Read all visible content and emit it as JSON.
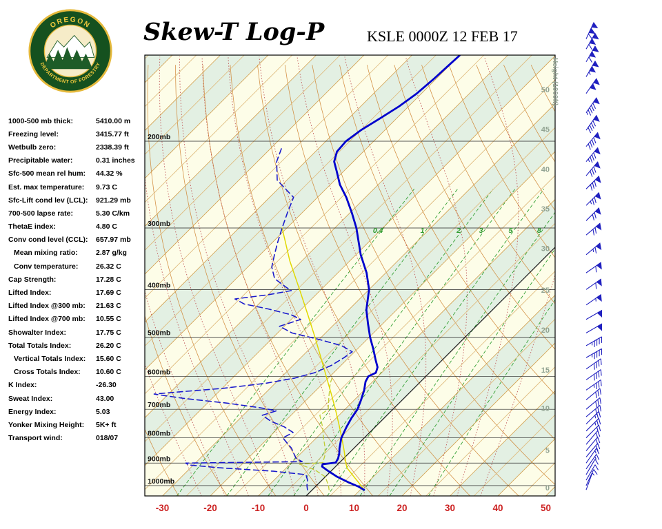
{
  "header": {
    "title": "Skew-T Log-P",
    "station": "KSLE 0000Z 12 FEB 17",
    "logo_top": "OREGON",
    "logo_bottom": "DEPARTMENT OF FORESTRY"
  },
  "indices": [
    {
      "label": "1000-500 mb thick:",
      "value": "5410.00 m",
      "indent": false
    },
    {
      "label": "Freezing level:",
      "value": "3415.77 ft",
      "indent": false
    },
    {
      "label": "Wetbulb zero:",
      "value": "2338.39 ft",
      "indent": false
    },
    {
      "label": "Precipitable water:",
      "value": "0.31 inches",
      "indent": false
    },
    {
      "label": "Sfc-500 mean rel hum:",
      "value": "44.32 %",
      "indent": false
    },
    {
      "label": "Est. max temperature:",
      "value": "9.73 C",
      "indent": false
    },
    {
      "label": "Sfc-Lift cond lev (LCL):",
      "value": "921.29 mb",
      "indent": false
    },
    {
      "label": "700-500 lapse rate:",
      "value": "5.30 C/km",
      "indent": false
    },
    {
      "label": "ThetaE index:",
      "value": "4.80 C",
      "indent": false
    },
    {
      "label": "Conv cond level (CCL):",
      "value": "657.97 mb",
      "indent": false
    },
    {
      "label": "Mean mixing ratio:",
      "value": "2.87 g/kg",
      "indent": true
    },
    {
      "label": "Conv temperature:",
      "value": "26.32 C",
      "indent": true
    },
    {
      "label": "Cap Strength:",
      "value": "17.28 C",
      "indent": false
    },
    {
      "label": "Lifted Index:",
      "value": "17.69 C",
      "indent": false
    },
    {
      "label": "Lifted Index @300 mb:",
      "value": "21.63 C",
      "indent": false
    },
    {
      "label": "Lifted Index @700 mb:",
      "value": "10.55 C",
      "indent": false
    },
    {
      "label": "Showalter Index:",
      "value": "17.75 C",
      "indent": false
    },
    {
      "label": "Total Totals Index:",
      "value": "26.20 C",
      "indent": false
    },
    {
      "label": "Vertical Totals Index:",
      "value": "15.60 C",
      "indent": true
    },
    {
      "label": "Cross Totals Index:",
      "value": "10.60 C",
      "indent": true
    },
    {
      "label": "K Index:",
      "value": "-26.30",
      "indent": false
    },
    {
      "label": "Sweat Index:",
      "value": "43.00",
      "indent": false
    },
    {
      "label": "Energy Index:",
      "value": "5.03",
      "indent": false
    },
    {
      "label": "Yonker Mixing Height:",
      "value": "5K+ ft",
      "indent": false
    },
    {
      "label": "Transport wind:",
      "value": "018/07",
      "indent": false
    }
  ],
  "colors": {
    "temp_profile": "#0000CC",
    "dewpoint": "#1A1ACC",
    "parcel": "#E0D800",
    "wetbulb": "#BFCC33",
    "isotherm": "#D2A050",
    "isotherm_minor": "#DEB97A",
    "zero_isotherm": "#222222",
    "dry_adiabat": "#D08838",
    "moist_adiabat": "#C05858",
    "mixing_ratio": "#33A033",
    "band_green": "#E3F0E3",
    "band_cream": "#FDFDE8",
    "pressure_line": "#222222",
    "temp_label": "#CC2222",
    "height_label": "#92A392",
    "wind_barb": "#2020C0",
    "frame": "#000000"
  },
  "chart_data": {
    "type": "line",
    "title": "Skew-T Log-P",
    "station": "KSLE 0000Z 12 FEB 17",
    "x_axis": {
      "unit": "C",
      "ticks": [
        {
          "t": -30,
          "label": "-30"
        },
        {
          "t": -20,
          "label": "-20"
        },
        {
          "t": -10,
          "label": "-10"
        },
        {
          "t": 0,
          "label": "0"
        },
        {
          "t": 10,
          "label": "10"
        },
        {
          "t": 20,
          "label": "20"
        },
        {
          "t": 30,
          "label": "30"
        },
        {
          "t": 40,
          "label": "40"
        },
        {
          "t": 50,
          "label": "50"
        }
      ]
    },
    "pressure_levels": [
      {
        "p": 200,
        "label": "200mb"
      },
      {
        "p": 300,
        "label": "300mb"
      },
      {
        "p": 400,
        "label": "400mb"
      },
      {
        "p": 500,
        "label": "500mb"
      },
      {
        "p": 600,
        "label": "600mb"
      },
      {
        "p": 700,
        "label": "700mb"
      },
      {
        "p": 800,
        "label": "800mb"
      },
      {
        "p": 900,
        "label": "900mb"
      },
      {
        "p": 1000,
        "label": "1000mb"
      }
    ],
    "height_axis_label": "Height (1000ft)",
    "height_levels": [
      {
        "kft": 0,
        "label": "0",
        "p": 1010
      },
      {
        "kft": 5,
        "label": "5",
        "p": 847
      },
      {
        "kft": 10,
        "label": "10",
        "p": 696
      },
      {
        "kft": 15,
        "label": "15",
        "p": 582
      },
      {
        "kft": 20,
        "label": "20",
        "p": 483
      },
      {
        "kft": 25,
        "label": "25",
        "p": 401
      },
      {
        "kft": 30,
        "label": "30",
        "p": 330
      },
      {
        "kft": 35,
        "label": "35",
        "p": 274
      },
      {
        "kft": 40,
        "label": "40",
        "p": 228
      },
      {
        "kft": 45,
        "label": "45",
        "p": 189
      },
      {
        "kft": 50,
        "label": "50",
        "p": 157
      }
    ],
    "mixing_ratio_lines": [
      0.4,
      1,
      2,
      3,
      5,
      8,
      12,
      20
    ],
    "mixing_ratio_labels": [
      {
        "w": 0.4,
        "label": "0.4"
      },
      {
        "w": 1,
        "label": "1"
      },
      {
        "w": 2,
        "label": "2"
      },
      {
        "w": 3,
        "label": "3"
      },
      {
        "w": 5,
        "label": "5"
      },
      {
        "w": 8,
        "label": "8"
      }
    ],
    "isotherm_range": {
      "min": -150,
      "max": 65,
      "step": 5
    },
    "dry_adiabats": {
      "min": -40,
      "max": 220,
      "step": 10
    },
    "moist_adiabats": {
      "min": -25,
      "max": 35,
      "step": 5
    },
    "series": [
      {
        "name": "wetbulb",
        "color": "#BFCC33",
        "style": "dashed",
        "dash": "6 4",
        "width": 1.3,
        "points": [
          [
            1020,
            3.5
          ],
          [
            1000,
            2.5
          ],
          [
            960,
            0
          ],
          [
            930,
            -3.5
          ],
          [
            905,
            -8
          ],
          [
            898,
            -3.5
          ],
          [
            870,
            -4.5
          ],
          [
            840,
            -6
          ],
          [
            800,
            -8.5
          ],
          [
            760,
            -11
          ],
          [
            720,
            -14
          ],
          [
            700,
            -13.5
          ],
          [
            660,
            -16
          ],
          [
            620,
            -18.5
          ],
          [
            600,
            -19.5
          ]
        ]
      },
      {
        "name": "parcel",
        "color": "#E0D800",
        "style": "solid",
        "width": 1.5,
        "points": [
          [
            1020,
            10.8
          ],
          [
            1000,
            9.3
          ],
          [
            960,
            6
          ],
          [
            921,
            2.7
          ],
          [
            900,
            1.4
          ],
          [
            850,
            -1.5
          ],
          [
            800,
            -4.7
          ],
          [
            750,
            -8.2
          ],
          [
            700,
            -12
          ],
          [
            650,
            -16.2
          ],
          [
            600,
            -20.8
          ],
          [
            550,
            -25.8
          ],
          [
            500,
            -31.3
          ],
          [
            450,
            -37.5
          ],
          [
            400,
            -44.5
          ],
          [
            350,
            -52.5
          ],
          [
            300,
            -61
          ]
        ]
      },
      {
        "name": "dewpoint",
        "color": "#1A1ACC",
        "style": "dashed",
        "dash": "8 5",
        "width": 1.6,
        "points": [
          [
            1020,
            -1
          ],
          [
            1000,
            -2
          ],
          [
            975,
            -3
          ],
          [
            950,
            -4.5
          ],
          [
            935,
            -12
          ],
          [
            920,
            -24
          ],
          [
            908,
            -31
          ],
          [
            900,
            -32
          ],
          [
            894,
            -8
          ],
          [
            880,
            -10
          ],
          [
            860,
            -11.5
          ],
          [
            840,
            -13
          ],
          [
            820,
            -15
          ],
          [
            800,
            -17
          ],
          [
            780,
            -16
          ],
          [
            760,
            -19
          ],
          [
            740,
            -23
          ],
          [
            720,
            -26
          ],
          [
            705,
            -24
          ],
          [
            695,
            -28
          ],
          [
            680,
            -36
          ],
          [
            665,
            -46
          ],
          [
            652,
            -53
          ],
          [
            645,
            -48
          ],
          [
            635,
            -40
          ],
          [
            620,
            -32
          ],
          [
            605,
            -27
          ],
          [
            590,
            -24
          ],
          [
            570,
            -22
          ],
          [
            550,
            -21
          ],
          [
            535,
            -20.5
          ],
          [
            520,
            -24
          ],
          [
            505,
            -30
          ],
          [
            490,
            -37
          ],
          [
            475,
            -41
          ],
          [
            460,
            -38
          ],
          [
            450,
            -41
          ],
          [
            438,
            -47
          ],
          [
            428,
            -53
          ],
          [
            418,
            -56
          ],
          [
            410,
            -50
          ],
          [
            402,
            -46
          ],
          [
            395,
            -48
          ],
          [
            380,
            -52
          ],
          [
            360,
            -55
          ],
          [
            340,
            -57
          ],
          [
            320,
            -59
          ],
          [
            300,
            -61
          ],
          [
            280,
            -63
          ],
          [
            260,
            -65
          ],
          [
            240,
            -72
          ],
          [
            220,
            -76
          ],
          [
            205,
            -78
          ]
        ]
      },
      {
        "name": "temperature",
        "color": "#0000CC",
        "style": "solid",
        "width": 2.8,
        "points": [
          [
            1020,
            10.8
          ],
          [
            1005,
            9
          ],
          [
            985,
            6
          ],
          [
            960,
            2.5
          ],
          [
            935,
            -0.5
          ],
          [
            915,
            -2.8
          ],
          [
            905,
            -3.2
          ],
          [
            898,
            -0.8
          ],
          [
            880,
            -1.2
          ],
          [
            860,
            -2
          ],
          [
            840,
            -3
          ],
          [
            800,
            -4.8
          ],
          [
            760,
            -6
          ],
          [
            730,
            -6.8
          ],
          [
            700,
            -7.4
          ],
          [
            670,
            -8.6
          ],
          [
            640,
            -10
          ],
          [
            615,
            -11.5
          ],
          [
            600,
            -12
          ],
          [
            590,
            -11.2
          ],
          [
            575,
            -12
          ],
          [
            555,
            -14
          ],
          [
            530,
            -16.5
          ],
          [
            500,
            -19.8
          ],
          [
            470,
            -23
          ],
          [
            440,
            -26.3
          ],
          [
            400,
            -30
          ],
          [
            370,
            -34
          ],
          [
            340,
            -39
          ],
          [
            300,
            -45.5
          ],
          [
            280,
            -49.5
          ],
          [
            260,
            -54
          ],
          [
            245,
            -58
          ],
          [
            230,
            -61.5
          ],
          [
            220,
            -64
          ],
          [
            210,
            -65.5
          ],
          [
            200,
            -65.8
          ],
          [
            190,
            -65
          ],
          [
            180,
            -63.5
          ],
          [
            170,
            -62
          ],
          [
            160,
            -61
          ],
          [
            150,
            -60.5
          ],
          [
            140,
            -60.2
          ],
          [
            134,
            -60
          ]
        ]
      }
    ],
    "wind_barbs": [
      [
        1020,
        20,
        7
      ],
      [
        1000,
        25,
        10
      ],
      [
        975,
        30,
        10
      ],
      [
        950,
        30,
        12
      ],
      [
        925,
        35,
        15
      ],
      [
        900,
        35,
        15
      ],
      [
        875,
        40,
        18
      ],
      [
        850,
        40,
        20
      ],
      [
        825,
        40,
        20
      ],
      [
        800,
        45,
        22
      ],
      [
        775,
        45,
        25
      ],
      [
        750,
        45,
        25
      ],
      [
        725,
        50,
        28
      ],
      [
        700,
        50,
        30
      ],
      [
        670,
        50,
        32
      ],
      [
        640,
        55,
        35
      ],
      [
        610,
        55,
        38
      ],
      [
        580,
        55,
        40
      ],
      [
        550,
        60,
        43
      ],
      [
        520,
        60,
        45
      ],
      [
        490,
        60,
        50
      ],
      [
        460,
        60,
        52
      ],
      [
        430,
        55,
        55
      ],
      [
        400,
        55,
        60
      ],
      [
        370,
        55,
        62
      ],
      [
        340,
        50,
        65
      ],
      [
        310,
        50,
        70
      ],
      [
        290,
        45,
        72
      ],
      [
        270,
        45,
        75
      ],
      [
        250,
        45,
        78
      ],
      [
        235,
        40,
        82
      ],
      [
        220,
        40,
        85
      ],
      [
        205,
        40,
        88
      ],
      [
        190,
        35,
        92
      ],
      [
        175,
        35,
        95
      ],
      [
        160,
        35,
        100
      ],
      [
        148,
        30,
        105
      ],
      [
        138,
        30,
        108
      ],
      [
        130,
        30,
        110
      ],
      [
        124,
        25,
        112
      ]
    ]
  }
}
